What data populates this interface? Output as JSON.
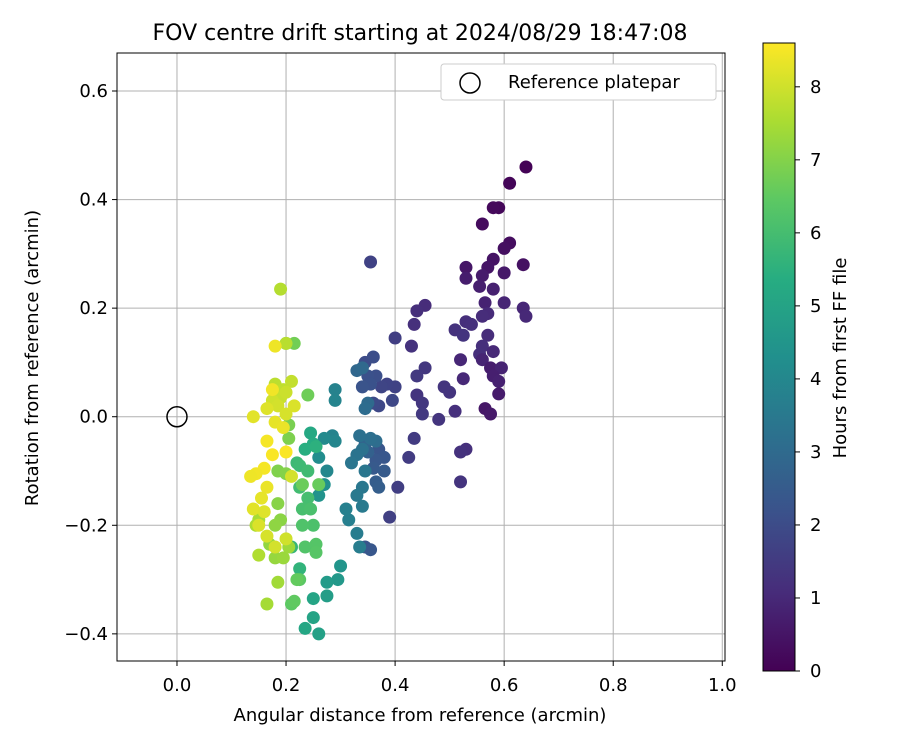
{
  "chart_data": {
    "type": "scatter",
    "title": "FOV centre drift starting at 2024/08/29 18:47:08",
    "xlabel": "Angular distance from reference (arcmin)",
    "ylabel": "Rotation from reference (arcmin)",
    "xlim": [
      -0.11,
      1.005
    ],
    "ylim": [
      -0.45,
      0.67
    ],
    "xticks": [
      0.0,
      0.2,
      0.4,
      0.6,
      0.8,
      1.0
    ],
    "xtick_labels": [
      "0.0",
      "0.2",
      "0.4",
      "0.6",
      "0.8",
      "1.0"
    ],
    "yticks": [
      -0.4,
      -0.2,
      0.0,
      0.2,
      0.4,
      0.6
    ],
    "ytick_labels": [
      "−0.4",
      "−0.2",
      "0.0",
      "0.2",
      "0.4",
      "0.6"
    ],
    "grid": true,
    "legend": {
      "position": "top-right",
      "entries": [
        "Reference platepar"
      ]
    },
    "reference_point": {
      "x": 0.0,
      "y": 0.0
    },
    "colorbar": {
      "label": "Hours from first FF file",
      "colormap": "viridis",
      "range": [
        0,
        8.6
      ],
      "ticks": [
        0,
        1,
        2,
        3,
        4,
        5,
        6,
        7,
        8
      ],
      "tick_labels": [
        "0",
        "1",
        "2",
        "3",
        "4",
        "5",
        "6",
        "7",
        "8"
      ]
    },
    "series": [
      {
        "points": [
          [
            0.64,
            0.46,
            0.05
          ],
          [
            0.61,
            0.43,
            0.1
          ],
          [
            0.59,
            0.385,
            0.15
          ],
          [
            0.58,
            0.385,
            0.2
          ],
          [
            0.56,
            0.355,
            0.25
          ],
          [
            0.61,
            0.32,
            0.3
          ],
          [
            0.6,
            0.31,
            0.35
          ],
          [
            0.635,
            0.28,
            0.4
          ],
          [
            0.58,
            0.29,
            0.45
          ],
          [
            0.57,
            0.275,
            0.5
          ],
          [
            0.53,
            0.275,
            0.55
          ],
          [
            0.6,
            0.265,
            0.6
          ],
          [
            0.56,
            0.26,
            0.65
          ],
          [
            0.53,
            0.255,
            0.7
          ],
          [
            0.555,
            0.24,
            0.75
          ],
          [
            0.58,
            0.235,
            0.8
          ],
          [
            0.565,
            0.21,
            0.85
          ],
          [
            0.6,
            0.21,
            0.9
          ],
          [
            0.635,
            0.2,
            0.95
          ],
          [
            0.64,
            0.185,
            1.0
          ],
          [
            0.57,
            0.19,
            1.05
          ],
          [
            0.56,
            0.185,
            1.1
          ],
          [
            0.53,
            0.175,
            1.15
          ],
          [
            0.54,
            0.17,
            1.2
          ],
          [
            0.51,
            0.16,
            1.25
          ],
          [
            0.525,
            0.15,
            1.3
          ],
          [
            0.57,
            0.15,
            1.1
          ],
          [
            0.56,
            0.13,
            1.15
          ],
          [
            0.555,
            0.115,
            1.2
          ],
          [
            0.58,
            0.12,
            1.0
          ],
          [
            0.56,
            0.105,
            0.9
          ],
          [
            0.52,
            0.105,
            0.95
          ],
          [
            0.575,
            0.09,
            0.7
          ],
          [
            0.595,
            0.09,
            0.85
          ],
          [
            0.58,
            0.075,
            0.75
          ],
          [
            0.59,
            0.065,
            0.8
          ],
          [
            0.525,
            0.07,
            1.0
          ],
          [
            0.5,
            0.045,
            1.3
          ],
          [
            0.59,
            0.042,
            0.65
          ],
          [
            0.565,
            0.015,
            0.55
          ],
          [
            0.575,
            0.005,
            0.6
          ],
          [
            0.51,
            0.01,
            1.2
          ],
          [
            0.48,
            -0.005,
            1.35
          ],
          [
            0.455,
            0.09,
            1.4
          ],
          [
            0.44,
            0.075,
            1.45
          ],
          [
            0.455,
            0.205,
            1.1
          ],
          [
            0.44,
            0.195,
            1.15
          ],
          [
            0.435,
            0.17,
            1.2
          ],
          [
            0.43,
            0.13,
            1.25
          ],
          [
            0.44,
            0.04,
            1.3
          ],
          [
            0.49,
            0.055,
            1.35
          ],
          [
            0.45,
            0.025,
            1.4
          ],
          [
            0.45,
            0.005,
            1.45
          ],
          [
            0.435,
            -0.04,
            1.5
          ],
          [
            0.53,
            -0.06,
            1.2
          ],
          [
            0.52,
            -0.065,
            1.25
          ],
          [
            0.4,
            0.145,
            1.6
          ],
          [
            0.425,
            -0.075,
            1.55
          ],
          [
            0.405,
            -0.13,
            1.6
          ],
          [
            0.39,
            -0.185,
            1.65
          ],
          [
            0.355,
            0.285,
            1.7
          ],
          [
            0.52,
            -0.12,
            1.3
          ],
          [
            0.4,
            0.055,
            1.7
          ],
          [
            0.385,
            0.06,
            1.75
          ],
          [
            0.375,
            0.055,
            1.8
          ],
          [
            0.395,
            0.03,
            1.85
          ],
          [
            0.37,
            0.02,
            1.9
          ],
          [
            0.36,
            0.025,
            1.95
          ],
          [
            0.345,
            0.1,
            2.0
          ],
          [
            0.36,
            0.11,
            2.05
          ],
          [
            0.365,
            0.075,
            2.1
          ],
          [
            0.35,
            0.075,
            2.15
          ],
          [
            0.355,
            0.06,
            2.2
          ],
          [
            0.34,
            0.055,
            2.25
          ],
          [
            0.37,
            -0.06,
            2.3
          ],
          [
            0.38,
            -0.075,
            2.35
          ],
          [
            0.365,
            -0.08,
            2.4
          ],
          [
            0.36,
            -0.095,
            2.45
          ],
          [
            0.38,
            -0.1,
            2.5
          ],
          [
            0.345,
            -0.24,
            2.3
          ],
          [
            0.355,
            -0.245,
            2.35
          ],
          [
            0.365,
            -0.12,
            2.55
          ],
          [
            0.37,
            -0.13,
            2.6
          ],
          [
            0.35,
            -0.065,
            2.7
          ],
          [
            0.345,
            -0.05,
            2.8
          ],
          [
            0.33,
            0.085,
            2.9
          ],
          [
            0.34,
            0.09,
            2.95
          ],
          [
            0.35,
            0.025,
            3.0
          ],
          [
            0.345,
            0.015,
            3.05
          ],
          [
            0.365,
            -0.045,
            3.1
          ],
          [
            0.355,
            -0.04,
            3.15
          ],
          [
            0.335,
            -0.035,
            3.2
          ],
          [
            0.34,
            -0.06,
            3.25
          ],
          [
            0.33,
            -0.07,
            3.3
          ],
          [
            0.32,
            -0.085,
            3.35
          ],
          [
            0.345,
            -0.1,
            3.4
          ],
          [
            0.34,
            -0.13,
            3.45
          ],
          [
            0.33,
            -0.145,
            3.5
          ],
          [
            0.34,
            -0.165,
            3.55
          ],
          [
            0.33,
            -0.215,
            3.6
          ],
          [
            0.335,
            -0.24,
            3.65
          ],
          [
            0.315,
            -0.19,
            3.7
          ],
          [
            0.31,
            -0.17,
            3.75
          ],
          [
            0.29,
            0.05,
            3.8
          ],
          [
            0.29,
            0.03,
            3.9
          ],
          [
            0.285,
            -0.035,
            3.85
          ],
          [
            0.29,
            -0.045,
            3.95
          ],
          [
            0.275,
            -0.1,
            4.0
          ],
          [
            0.27,
            -0.04,
            4.1
          ],
          [
            0.26,
            -0.075,
            4.2
          ],
          [
            0.27,
            -0.125,
            4.3
          ],
          [
            0.26,
            -0.145,
            4.4
          ],
          [
            0.3,
            -0.275,
            4.5
          ],
          [
            0.295,
            -0.3,
            4.6
          ],
          [
            0.275,
            -0.305,
            4.7
          ],
          [
            0.275,
            -0.33,
            4.8
          ],
          [
            0.26,
            -0.4,
            4.9
          ],
          [
            0.25,
            -0.37,
            5.0
          ],
          [
            0.25,
            -0.335,
            5.05
          ],
          [
            0.235,
            -0.39,
            5.1
          ],
          [
            0.245,
            -0.03,
            5.2
          ],
          [
            0.25,
            -0.05,
            5.3
          ],
          [
            0.235,
            -0.06,
            5.4
          ],
          [
            0.255,
            -0.055,
            5.5
          ],
          [
            0.225,
            -0.28,
            5.6
          ],
          [
            0.21,
            -0.24,
            5.7
          ],
          [
            0.22,
            -0.085,
            5.8
          ],
          [
            0.225,
            -0.09,
            5.85
          ],
          [
            0.24,
            -0.1,
            5.9
          ],
          [
            0.225,
            -0.13,
            5.95
          ],
          [
            0.24,
            -0.15,
            6.0
          ],
          [
            0.23,
            -0.17,
            6.05
          ],
          [
            0.245,
            -0.17,
            6.1
          ],
          [
            0.25,
            -0.2,
            6.15
          ],
          [
            0.23,
            -0.2,
            6.2
          ],
          [
            0.235,
            -0.24,
            6.25
          ],
          [
            0.255,
            -0.235,
            6.3
          ],
          [
            0.255,
            -0.25,
            6.35
          ],
          [
            0.225,
            -0.3,
            6.4
          ],
          [
            0.21,
            -0.345,
            6.45
          ],
          [
            0.215,
            -0.34,
            6.5
          ],
          [
            0.22,
            -0.3,
            6.55
          ],
          [
            0.26,
            -0.125,
            6.6
          ],
          [
            0.23,
            -0.125,
            6.65
          ],
          [
            0.24,
            0.04,
            6.7
          ],
          [
            0.215,
            0.135,
            6.75
          ],
          [
            0.2,
            0.135,
            6.8
          ],
          [
            0.205,
            -0.015,
            6.85
          ],
          [
            0.205,
            -0.04,
            6.9
          ],
          [
            0.185,
            -0.1,
            6.95
          ],
          [
            0.2,
            -0.105,
            7.0
          ],
          [
            0.185,
            -0.16,
            7.05
          ],
          [
            0.19,
            -0.19,
            7.1
          ],
          [
            0.18,
            -0.2,
            7.15
          ],
          [
            0.17,
            -0.235,
            7.2
          ],
          [
            0.18,
            -0.26,
            7.25
          ],
          [
            0.195,
            -0.26,
            7.3
          ],
          [
            0.205,
            -0.24,
            7.35
          ],
          [
            0.185,
            -0.305,
            7.4
          ],
          [
            0.165,
            -0.345,
            7.45
          ],
          [
            0.15,
            -0.19,
            7.5
          ],
          [
            0.145,
            -0.2,
            7.55
          ],
          [
            0.15,
            -0.255,
            7.6
          ],
          [
            0.19,
            0.235,
            7.65
          ],
          [
            0.2,
            0.135,
            7.7
          ],
          [
            0.18,
            0.06,
            7.75
          ],
          [
            0.195,
            0.05,
            7.8
          ],
          [
            0.21,
            0.065,
            7.85
          ],
          [
            0.19,
            0.035,
            7.9
          ],
          [
            0.2,
            0.045,
            7.95
          ],
          [
            0.175,
            0.03,
            8.0
          ],
          [
            0.185,
            0.02,
            8.05
          ],
          [
            0.2,
            0.005,
            8.1
          ],
          [
            0.215,
            0.02,
            8.15
          ],
          [
            0.165,
            0.015,
            8.2
          ],
          [
            0.14,
            0.0,
            8.25
          ],
          [
            0.18,
            -0.01,
            8.3
          ],
          [
            0.195,
            -0.02,
            8.35
          ],
          [
            0.18,
            0.13,
            8.4
          ],
          [
            0.175,
            0.05,
            8.45
          ],
          [
            0.165,
            -0.045,
            8.5
          ],
          [
            0.2,
            -0.065,
            8.55
          ],
          [
            0.175,
            -0.07,
            8.55
          ],
          [
            0.16,
            -0.095,
            8.5
          ],
          [
            0.145,
            -0.105,
            8.45
          ],
          [
            0.135,
            -0.11,
            8.4
          ],
          [
            0.165,
            -0.13,
            8.35
          ],
          [
            0.155,
            -0.15,
            8.3
          ],
          [
            0.14,
            -0.17,
            8.25
          ],
          [
            0.16,
            -0.175,
            8.2
          ],
          [
            0.15,
            -0.2,
            8.15
          ],
          [
            0.165,
            -0.22,
            8.1
          ],
          [
            0.18,
            -0.24,
            8.05
          ],
          [
            0.2,
            -0.225,
            8.0
          ],
          [
            0.21,
            -0.11,
            8.05
          ]
        ]
      }
    ]
  }
}
